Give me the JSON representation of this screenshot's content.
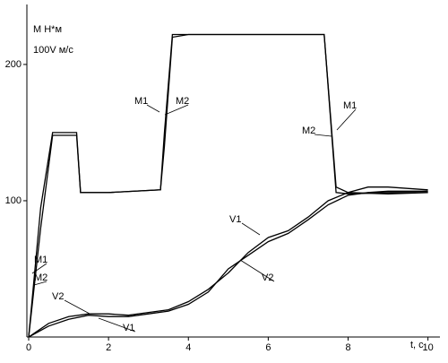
{
  "chart_data": {
    "type": "line",
    "y_label_1": "M  Н*м",
    "y_label_2": "100V  м/с",
    "x_label": "t, c",
    "xlim": [
      0,
      10.3
    ],
    "ylim": [
      0,
      244
    ],
    "xticks": [
      0,
      2,
      4,
      6,
      8,
      10
    ],
    "yticks": [
      100,
      200
    ],
    "series": [
      {
        "name": "M1",
        "color": "#000000",
        "x": [
          0,
          0.3,
          0.6,
          1.2,
          1.3,
          2,
          3.3,
          3.4,
          3.6,
          4,
          5,
          6,
          7,
          7.4,
          7.7,
          8,
          9,
          10
        ],
        "values": [
          0,
          95,
          150,
          150,
          106,
          106,
          108,
          150,
          222,
          222,
          222,
          222,
          222,
          222,
          106,
          105,
          106,
          106
        ]
      },
      {
        "name": "M2",
        "color": "#000000",
        "x": [
          0,
          0.3,
          0.6,
          1.2,
          1.3,
          2,
          3.3,
          3.4,
          3.6,
          4,
          5,
          6,
          7,
          7.4,
          7.7,
          8,
          9,
          10
        ],
        "values": [
          0,
          80,
          148,
          148,
          106,
          106,
          108,
          140,
          220,
          222,
          222,
          222,
          222,
          222,
          110,
          106,
          105,
          106
        ]
      },
      {
        "name": "V1",
        "color": "#000000",
        "x": [
          0,
          0.5,
          1,
          1.5,
          2,
          2.5,
          3,
          3.5,
          4,
          4.5,
          5,
          5.5,
          6,
          6.5,
          7,
          7.5,
          8,
          8.5,
          9,
          10
        ],
        "values": [
          0,
          10,
          15,
          17,
          17,
          16,
          18,
          20,
          26,
          35,
          47,
          62,
          73,
          78,
          88,
          100,
          106,
          110,
          110,
          108
        ]
      },
      {
        "name": "V2",
        "color": "#000000",
        "x": [
          0,
          0.5,
          1,
          1.5,
          2,
          2.5,
          3,
          3.5,
          4,
          4.5,
          5,
          5.5,
          6,
          6.5,
          7,
          7.5,
          8,
          8.5,
          9,
          10
        ],
        "values": [
          0,
          8,
          13,
          16,
          15,
          15,
          17,
          19,
          24,
          33,
          50,
          60,
          70,
          76,
          86,
          97,
          104,
          106,
          107,
          107
        ]
      }
    ],
    "annotations": [
      "M1",
      "M2",
      "M1",
      "M2",
      "M1",
      "M2",
      "V1",
      "V2",
      "V2",
      "V1"
    ]
  }
}
